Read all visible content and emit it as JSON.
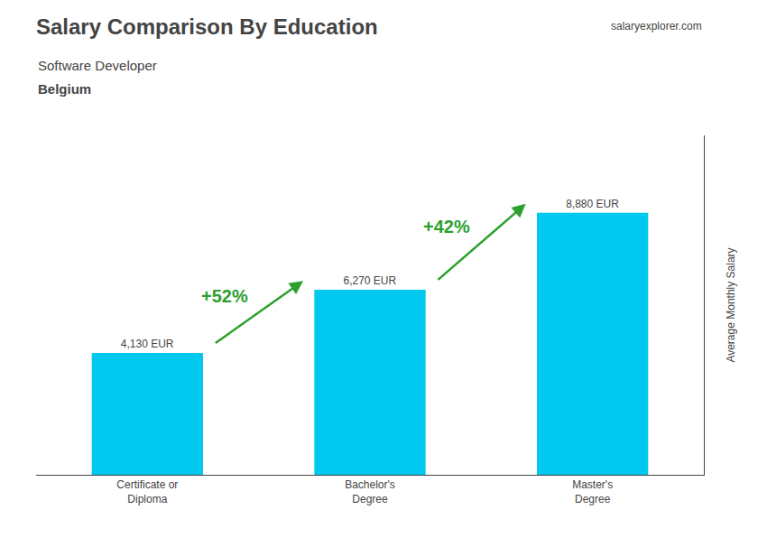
{
  "chart_data": {
    "type": "bar",
    "title": "Salary Comparison By Education",
    "subtitle": [
      "Software Developer",
      "Belgium"
    ],
    "categories": [
      "Certificate or\nDiploma",
      "Bachelor's\nDegree",
      "Master's\nDegree"
    ],
    "values": [
      4130,
      6270,
      8880
    ],
    "value_labels": [
      "4,130 EUR",
      "6,270 EUR",
      "8,880 EUR"
    ],
    "data_labels": true,
    "annotations": [
      "+52%",
      "+42%",
      "salaryexplorer.com"
    ],
    "ylabel": "Average Monthly Salary",
    "color": "#00c8ee",
    "ylim": [
      0,
      11500
    ],
    "tick_labels": "x",
    "grid": false
  }
}
